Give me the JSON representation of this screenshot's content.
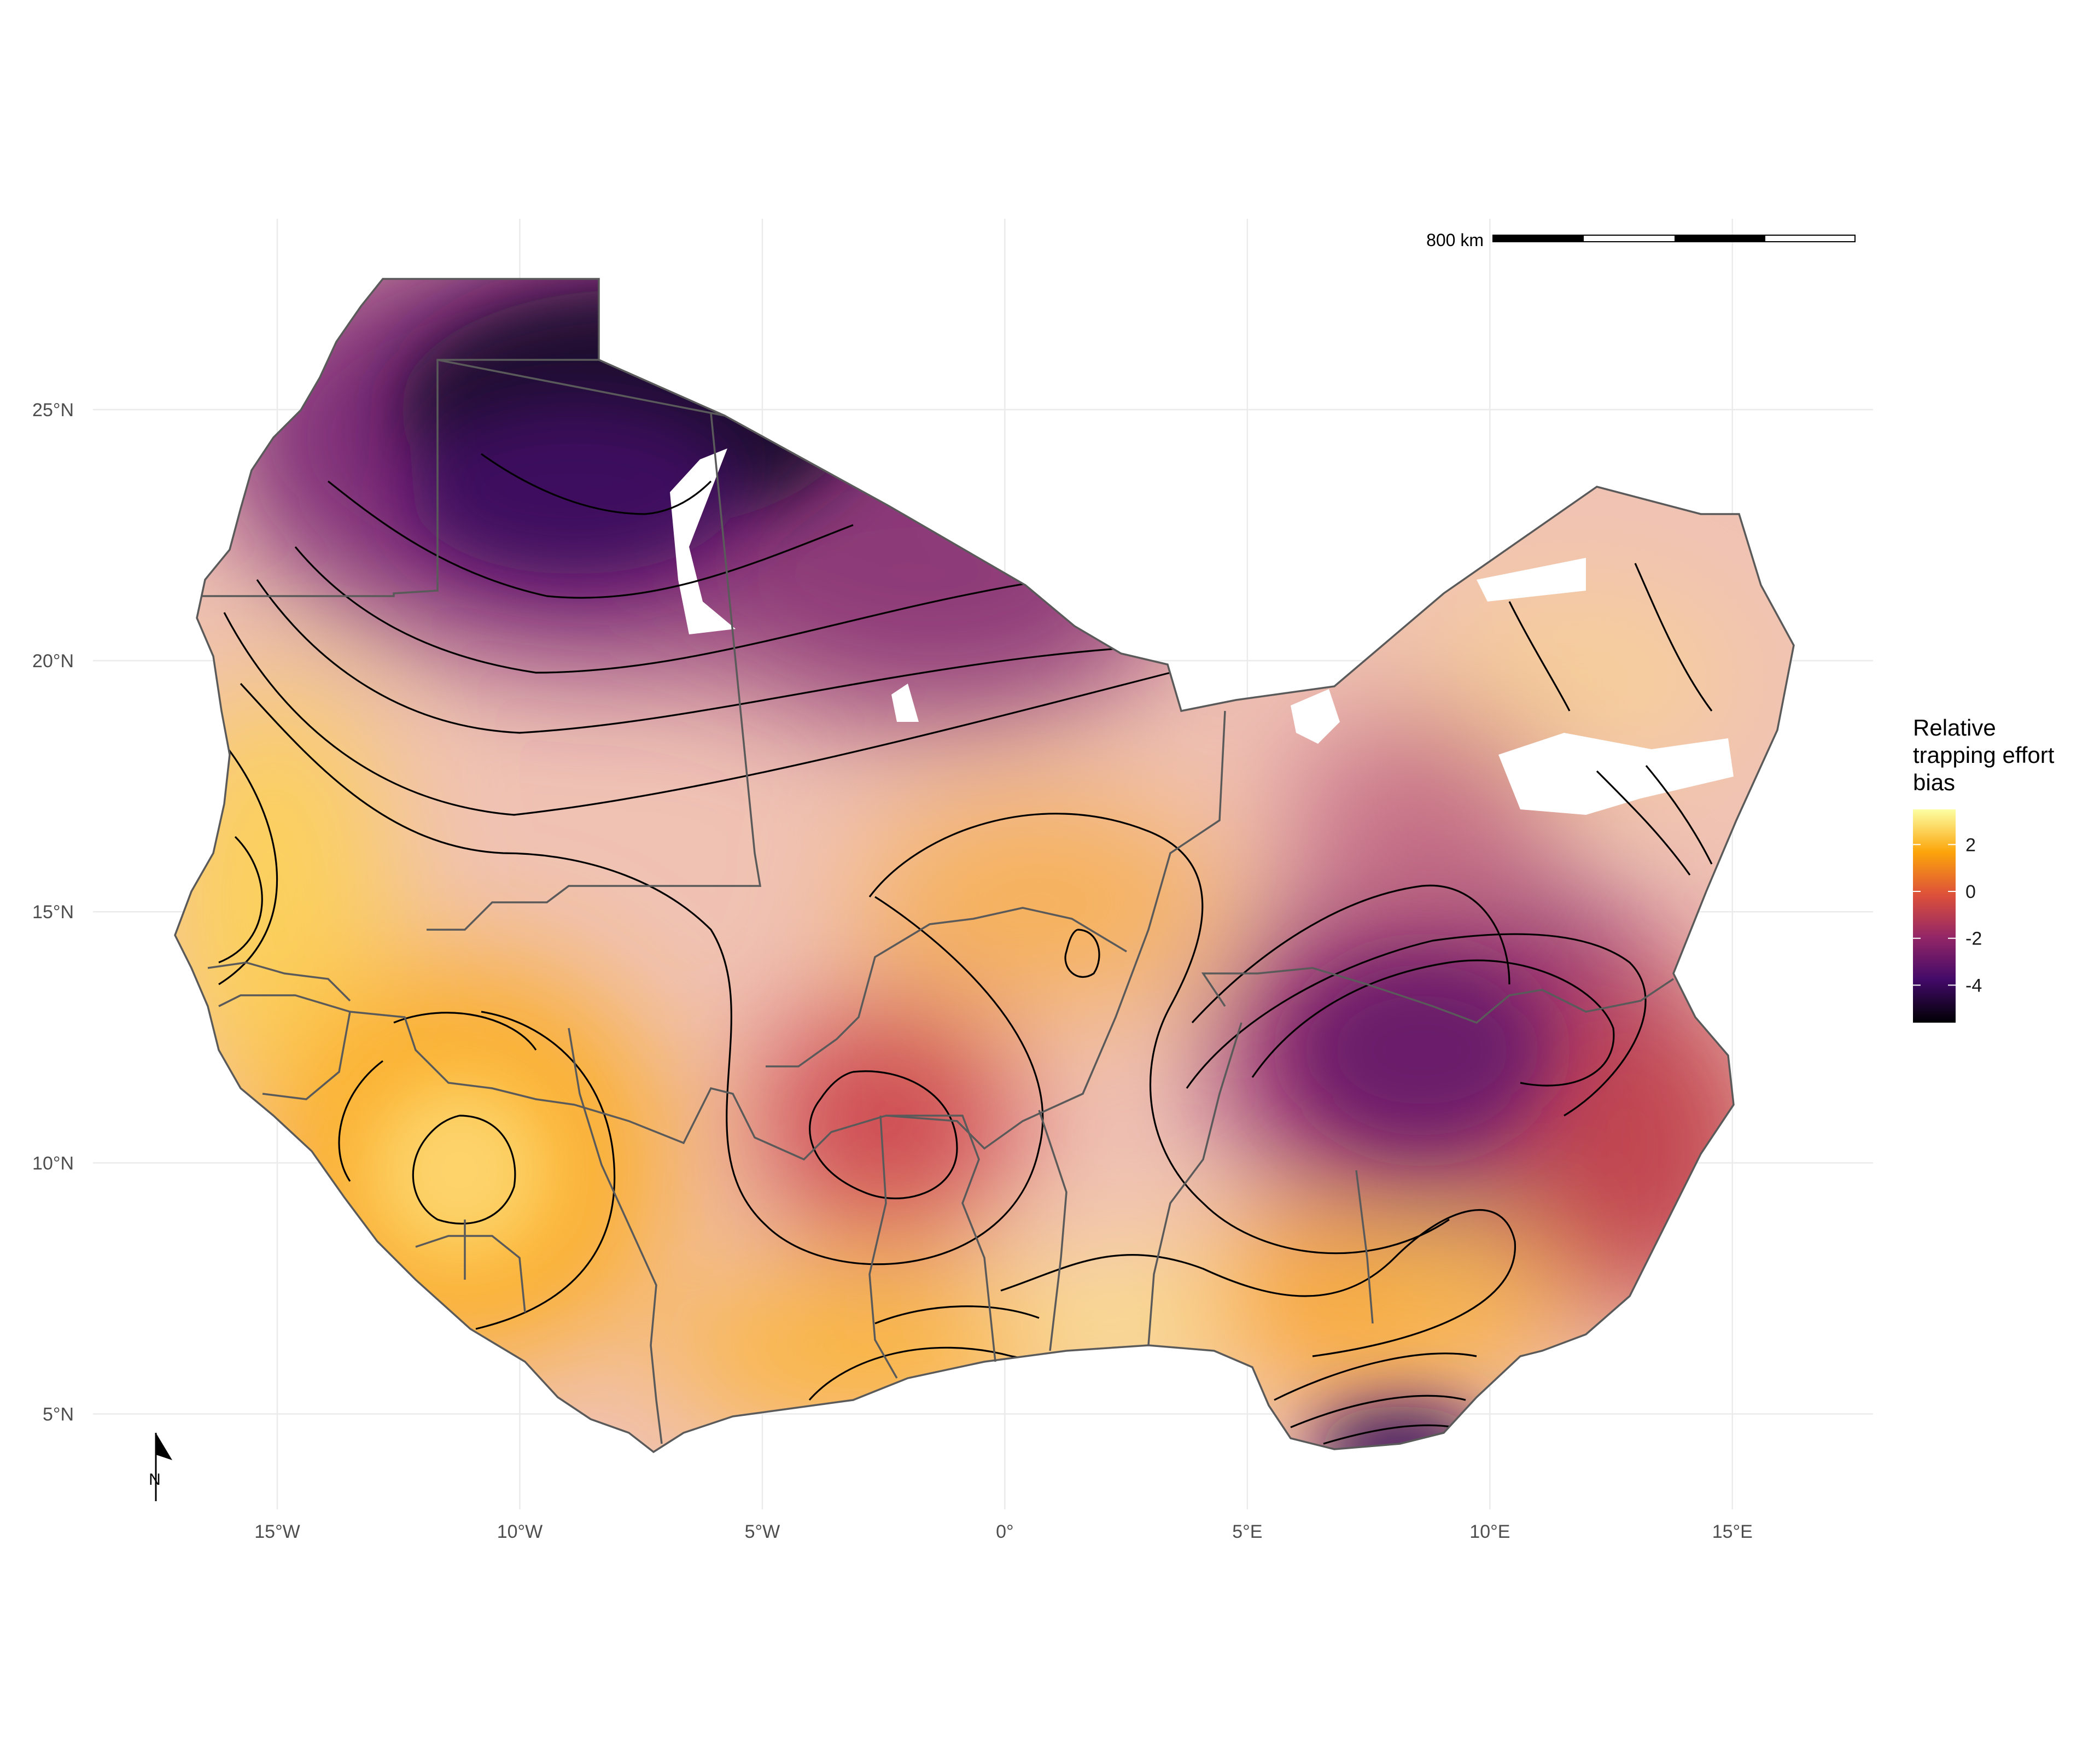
{
  "legend": {
    "title_lines": [
      "Relative",
      "trapping effort",
      "bias"
    ],
    "ticks": [
      {
        "label": "2",
        "value": 2
      },
      {
        "label": "0",
        "value": 0
      },
      {
        "label": "-2",
        "value": -2
      },
      {
        "label": "-4",
        "value": -4
      }
    ],
    "range": [
      -5.6,
      3.5
    ],
    "colors": [
      "#000004",
      "#420a68",
      "#932667",
      "#dd513a",
      "#fca50a",
      "#fcffa4"
    ]
  },
  "axes": {
    "x_ticks": [
      {
        "label": "15°W",
        "value": -15
      },
      {
        "label": "10°W",
        "value": -10
      },
      {
        "label": "5°W",
        "value": -5
      },
      {
        "label": "0°",
        "value": 0
      },
      {
        "label": "5°E",
        "value": 5
      },
      {
        "label": "10°E",
        "value": 10
      },
      {
        "label": "15°E",
        "value": 15
      }
    ],
    "y_ticks": [
      {
        "label": "25°N",
        "value": 25
      },
      {
        "label": "20°N",
        "value": 20
      },
      {
        "label": "15°N",
        "value": 15
      },
      {
        "label": "10°N",
        "value": 10
      },
      {
        "label": "5°N",
        "value": 5
      }
    ],
    "lon_range": [
      -18.8,
      17.9
    ],
    "lat_range": [
      3.1,
      28.8
    ],
    "grid": true
  },
  "scale_bar": {
    "label": "800 km"
  },
  "north_arrow": {
    "label": "N"
  }
}
